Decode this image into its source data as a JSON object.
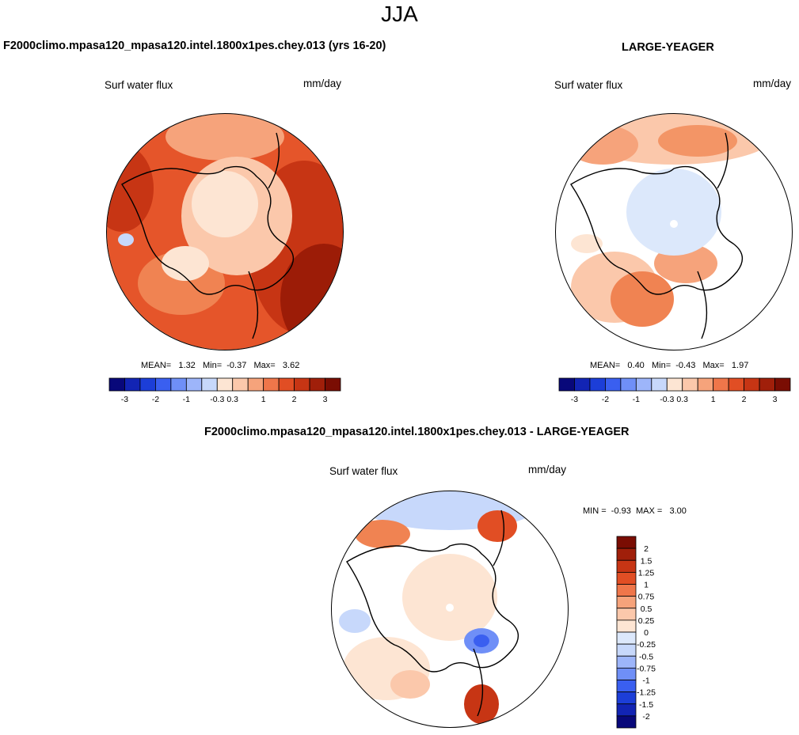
{
  "main_title": "JJA",
  "panels": [
    {
      "title": "F2000climo.mpasa120_mpasa120.intel.1800x1pes.chey.013 (yrs 16-20)",
      "variable": "Surf water flux",
      "units": "mm/day",
      "stats": {
        "mean_label": "MEAN=",
        "mean": "1.32",
        "min_label": "Min=",
        "min": "-0.37",
        "max_label": "Max=",
        "max": "3.62"
      }
    },
    {
      "title": "LARGE-YEAGER",
      "variable": "Surf water flux",
      "units": "mm/day",
      "stats": {
        "mean_label": "MEAN=",
        "mean": "0.40",
        "min_label": "Min=",
        "min": "-0.43",
        "max_label": "Max=",
        "max": "1.97"
      }
    },
    {
      "title": "F2000climo.mpasa120_mpasa120.intel.1800x1pes.chey.013 - LARGE-YEAGER",
      "variable": "Surf water flux",
      "units": "mm/day",
      "stats": {
        "min_label": "MIN =",
        "min": "-0.93",
        "max_label": "MAX =",
        "max": "3.00"
      }
    }
  ],
  "chart_data": [
    {
      "type": "heatmap",
      "projection": "north polar stereographic",
      "title": "F2000climo.mpasa120_mpasa120.intel.1800x1pes.chey.013 (yrs 16-20)",
      "variable": "Surf water flux",
      "units": "mm/day",
      "mean": 1.32,
      "min": -0.37,
      "max": 3.62,
      "colorbar": {
        "orientation": "horizontal",
        "colors": [
          "#08087a",
          "#1224b4",
          "#1c3ed8",
          "#3a5ff0",
          "#6f8ff7",
          "#9db5fa",
          "#c7d8fb",
          "#fde5d3",
          "#fbc8ab",
          "#f6a37b",
          "#ef764a",
          "#e14e24",
          "#c73514",
          "#a01f0a",
          "#7a0d03"
        ],
        "tick_labels": [
          "-3",
          "-2",
          "-1",
          "-0.3",
          "0.3",
          "1",
          "2",
          "3"
        ]
      }
    },
    {
      "type": "heatmap",
      "projection": "north polar stereographic",
      "title": "LARGE-YEAGER",
      "variable": "Surf water flux",
      "units": "mm/day",
      "mean": 0.4,
      "min": -0.43,
      "max": 1.97,
      "colorbar": {
        "orientation": "horizontal",
        "colors": [
          "#08087a",
          "#1224b4",
          "#1c3ed8",
          "#3a5ff0",
          "#6f8ff7",
          "#9db5fa",
          "#c7d8fb",
          "#fde5d3",
          "#fbc8ab",
          "#f6a37b",
          "#ef764a",
          "#e14e24",
          "#c73514",
          "#a01f0a",
          "#7a0d03"
        ],
        "tick_labels": [
          "-3",
          "-2",
          "-1",
          "-0.3",
          "0.3",
          "1",
          "2",
          "3"
        ]
      }
    },
    {
      "type": "heatmap",
      "projection": "north polar stereographic",
      "title": "F2000climo.mpasa120_mpasa120.intel.1800x1pes.chey.013 - LARGE-YEAGER",
      "variable": "Surf water flux",
      "units": "mm/day",
      "min": -0.93,
      "max": 3.0,
      "colorbar": {
        "orientation": "vertical",
        "colors": [
          "#7a0d03",
          "#a01f0a",
          "#c73514",
          "#e14e24",
          "#ef764a",
          "#f6a37b",
          "#fbc8ab",
          "#fde5d3",
          "#dce8fb",
          "#c7d8fb",
          "#9db5fa",
          "#6f8ff7",
          "#3a5ff0",
          "#1c3ed8",
          "#1224b4",
          "#08087a"
        ],
        "tick_labels": [
          "2",
          "1.5",
          "1.25",
          "1",
          "0.75",
          "0.5",
          "0.25",
          "0",
          "-0.25",
          "-0.5",
          "-0.75",
          "-1",
          "-1.25",
          "-1.5",
          "-2"
        ]
      }
    }
  ]
}
